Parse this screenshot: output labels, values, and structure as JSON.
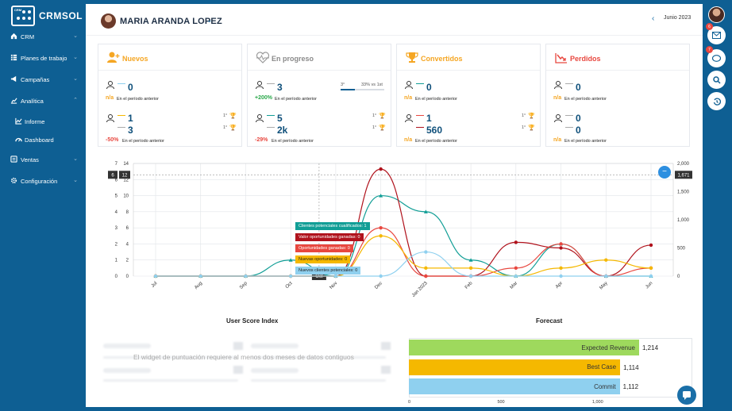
{
  "brand": {
    "name": "CRMSOL",
    "badge": "CRM"
  },
  "nav": [
    {
      "label": "CRM",
      "icon": "home-icon"
    },
    {
      "label": "Planes de trabajo",
      "icon": "list-icon"
    },
    {
      "label": "Campañas",
      "icon": "megaphone-icon"
    },
    {
      "label": "Analítica",
      "icon": "chart-icon"
    },
    {
      "label": "Informe",
      "icon": "line-chart-icon"
    },
    {
      "label": "Dashboard",
      "icon": "gauge-icon"
    },
    {
      "label": "Ventas",
      "icon": "sales-icon"
    },
    {
      "label": "Configuración",
      "icon": "gear-icon"
    }
  ],
  "header": {
    "user": "MARIA ARANDA LOPEZ",
    "period": "Junio 2023"
  },
  "rightbar": {
    "mail_badge": "6",
    "chat_badge": "7"
  },
  "cards": {
    "nuevos": {
      "title": "Nuevos",
      "color": "#f5a623",
      "top_value": "0",
      "top_pct": "n/a",
      "top_caption": "En el período anterior",
      "v1": "1",
      "v2": "3",
      "rank1": "1°",
      "rank2": "1°",
      "bottom_pct": "-50%",
      "bottom_caption": "En el período anterior"
    },
    "progreso": {
      "title": "En progreso",
      "color": "#8a8a8a",
      "top_value": "3",
      "progress_rank": "3°",
      "progress_text": "33% vs 1st",
      "progress_fraction": 0.33,
      "top_pct": "+200%",
      "top_caption": "En el período anterior",
      "v1": "5",
      "v2": "2k",
      "rank1": "1°",
      "rank2": "1°",
      "bottom_pct": "-29%",
      "bottom_caption": "En el período anterior"
    },
    "convertidos": {
      "title": "Convertidos",
      "color": "#f5a623",
      "top_value": "0",
      "top_pct": "n/a",
      "top_caption": "En el período anterior",
      "v1": "1",
      "v2": "560",
      "rank1": "1°",
      "rank2": "1°",
      "bottom_pct": "n/a",
      "bottom_caption": "En el período anterior"
    },
    "perdidos": {
      "title": "Perdidos",
      "color": "#e8473f",
      "top_value": "0",
      "top_pct": "n/a",
      "top_caption": "En el período anterior",
      "v1": "0",
      "v2": "0",
      "bottom_pct": "n/a",
      "bottom_caption": "En el período anterior"
    }
  },
  "chart_data": {
    "type": "line",
    "categories": [
      "Jul",
      "Aug",
      "Sep",
      "Oct",
      "Nov",
      "Dec",
      "Jan 2023",
      "Feb",
      "Mar",
      "Apr",
      "May",
      "Jun"
    ],
    "y_left1_ticks": [
      "0",
      "1",
      "2",
      "3",
      "4",
      "5",
      "6",
      "7"
    ],
    "y_left2_ticks": [
      "0",
      "2",
      "4",
      "6",
      "8",
      "10",
      "12",
      "14"
    ],
    "y_right_ticks": [
      "0",
      "500",
      "1,000",
      "1,500",
      "2,000"
    ],
    "crosshair_left1": "6",
    "crosshair_left2": "12",
    "crosshair_right": "1,671",
    "crosshair_x": "Oct",
    "series": [
      {
        "name": "Clientes potenciales cualificados",
        "color": "#119e96",
        "values": [
          0,
          0,
          0,
          1,
          0,
          5,
          4,
          1,
          0,
          2,
          0,
          0
        ]
      },
      {
        "name": "Valor oportunidades ganadas",
        "color": "#b0121c",
        "values": [
          0,
          0,
          0,
          0,
          0,
          1900,
          0,
          0,
          600,
          500,
          0,
          550
        ]
      },
      {
        "name": "Oportunidades ganadas",
        "color": "#e8473f",
        "values": [
          0,
          0,
          0,
          0,
          0,
          6,
          0,
          0,
          1,
          4,
          0,
          1
        ]
      },
      {
        "name": "Nuevas oportunidades",
        "color": "#f5b800",
        "values": [
          0,
          0,
          0,
          0,
          0,
          5,
          1,
          1,
          0,
          1,
          2,
          1
        ]
      },
      {
        "name": "Nuevos clientes potenciales",
        "color": "#8fd0ef",
        "values": [
          0,
          0,
          0,
          0,
          0,
          0,
          3,
          0,
          0,
          0,
          0,
          0
        ]
      }
    ],
    "tooltip": [
      {
        "label": "Clientes potenciales cualificados: 1",
        "color": "#119e96"
      },
      {
        "label": "Valor oportunidades ganadas: 0",
        "color": "#b0121c"
      },
      {
        "label": "Oportunidades ganadas: 0",
        "color": "#e8473f"
      },
      {
        "label": "Nuevas oportunidades: 0",
        "color": "#f5b800"
      },
      {
        "label": "Nuevos clientes potenciales: 0",
        "color": "#8fd0ef"
      }
    ]
  },
  "score": {
    "title": "User Score Index",
    "message": "El widget de puntuación requiere al menos dos meses de datos contiguos"
  },
  "forecast": {
    "title": "Forecast",
    "bars": [
      {
        "label": "Expected Revenue",
        "value": 1214,
        "display": "1,214",
        "color": "#9ed95d"
      },
      {
        "label": "Best Case",
        "value": 1114,
        "display": "1,114",
        "color": "#f5b800"
      },
      {
        "label": "Commit",
        "value": 1112,
        "display": "1,112",
        "color": "#8fd0ef"
      }
    ],
    "ticks": [
      "0",
      "500",
      "1,000"
    ]
  }
}
